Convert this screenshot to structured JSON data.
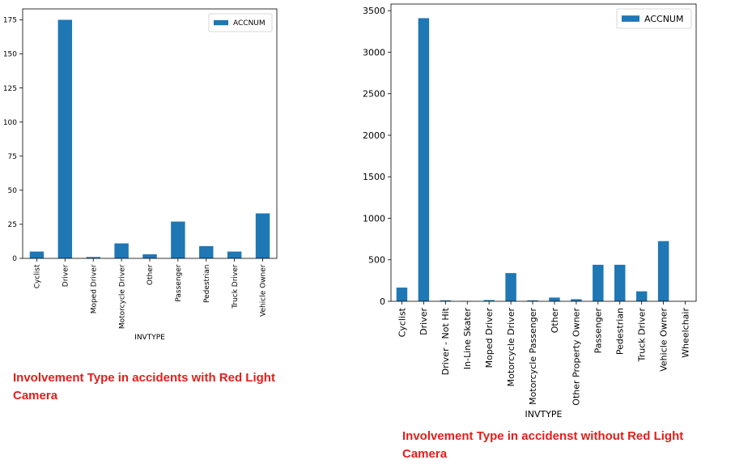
{
  "charts": [
    {
      "chart_data": {
        "type": "bar",
        "categories": [
          "Cyclist",
          "Driver",
          "Moped Driver",
          "Motorcycle Driver",
          "Other",
          "Passenger",
          "Pedestrian",
          "Truck Driver",
          "Vehicle Owner"
        ],
        "series": [
          {
            "name": "ACCNUM",
            "values": [
              5,
              175,
              1,
              11,
              3,
              27,
              9,
              5,
              33
            ]
          }
        ],
        "xlabel": "INVTYPE",
        "ylabel": "",
        "ylim": [
          0,
          183
        ],
        "yticks": [
          0,
          25,
          50,
          75,
          100,
          125,
          150,
          175
        ],
        "legend_position": "top-right",
        "bar_color": "#1f77b4",
        "grid": false
      },
      "caption": "Involvement Type in accidents with Red Light Camera"
    },
    {
      "chart_data": {
        "type": "bar",
        "categories": [
          "Cyclist",
          "Driver",
          "Driver - Not Hit",
          "In-Line Skater",
          "Moped Driver",
          "Motorcycle Driver",
          "Motorcycle Passenger",
          "Other",
          "Other Property Owner",
          "Passenger",
          "Pedestrian",
          "Truck Driver",
          "Vehicle Owner",
          "Wheelchair"
        ],
        "series": [
          {
            "name": "ACCNUM",
            "values": [
              165,
              3410,
              12,
              3,
              15,
              340,
              12,
              45,
              25,
              440,
              440,
              120,
              725,
              2
            ]
          }
        ],
        "xlabel": "INVTYPE",
        "ylabel": "",
        "ylim": [
          0,
          3580
        ],
        "yticks": [
          0,
          500,
          1000,
          1500,
          2000,
          2500,
          3000,
          3500
        ],
        "legend_position": "top-right",
        "bar_color": "#1f77b4",
        "grid": false
      },
      "caption": "Involvement Type in accidenst without Red Light Camera"
    }
  ]
}
